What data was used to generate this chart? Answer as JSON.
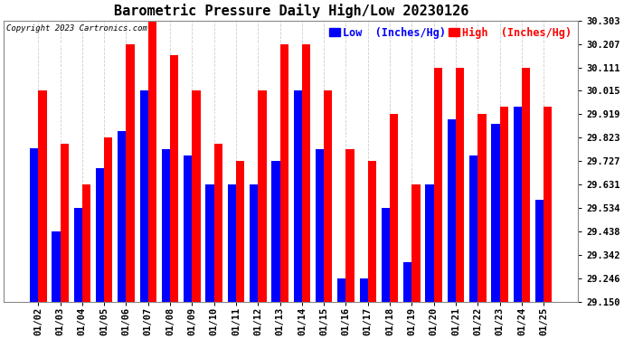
{
  "title": "Barometric Pressure Daily High/Low 20230126",
  "copyright": "Copyright 2023 Cartronics.com",
  "legend_low": "Low  (Inches/Hg)",
  "legend_high": "High  (Inches/Hg)",
  "categories": [
    "01/02",
    "01/03",
    "01/04",
    "01/05",
    "01/06",
    "01/07",
    "01/08",
    "01/09",
    "01/10",
    "01/11",
    "01/12",
    "01/13",
    "01/14",
    "01/15",
    "01/16",
    "01/17",
    "01/18",
    "01/19",
    "01/20",
    "01/21",
    "01/22",
    "01/23",
    "01/24",
    "01/25"
  ],
  "high_values": [
    30.015,
    29.8,
    29.631,
    29.823,
    30.207,
    30.303,
    30.16,
    30.015,
    29.8,
    29.727,
    30.015,
    30.207,
    30.207,
    30.015,
    29.776,
    29.727,
    29.919,
    29.631,
    30.111,
    30.111,
    29.919,
    29.95,
    30.111,
    29.95
  ],
  "low_values": [
    29.78,
    29.438,
    29.534,
    29.7,
    29.85,
    30.015,
    29.776,
    29.75,
    29.631,
    29.631,
    29.631,
    29.727,
    30.015,
    29.776,
    29.246,
    29.246,
    29.534,
    29.314,
    29.631,
    29.9,
    29.75,
    29.88,
    29.95,
    29.57
  ],
  "ybase": 29.15,
  "ylim_min": 29.15,
  "ylim_max": 30.303,
  "yticks": [
    29.15,
    29.246,
    29.342,
    29.438,
    29.534,
    29.631,
    29.727,
    29.823,
    29.919,
    30.015,
    30.111,
    30.207,
    30.303
  ],
  "bar_width": 0.38,
  "low_color": "#0000ff",
  "high_color": "#ff0000",
  "background_color": "#ffffff",
  "title_fontsize": 11,
  "tick_fontsize": 7.5,
  "legend_fontsize": 8.5,
  "copyright_fontsize": 6.5
}
